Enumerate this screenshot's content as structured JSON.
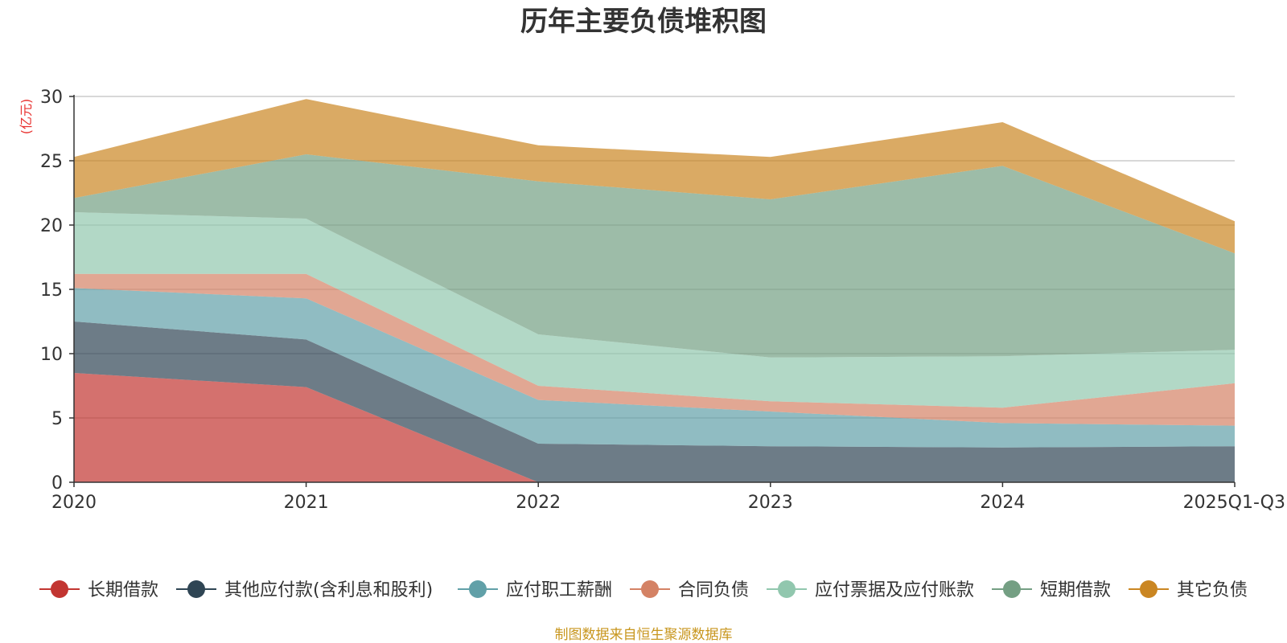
{
  "chart_data": {
    "type": "area",
    "stacked": true,
    "title": "历年主要负债堆积图",
    "unit_label": "(亿元)",
    "categories": [
      "2020",
      "2021",
      "2022",
      "2023",
      "2024",
      "2025Q1-Q3"
    ],
    "yticks": [
      "0",
      "5",
      "10",
      "15",
      "20",
      "25",
      "30"
    ],
    "ylim": [
      0,
      30
    ],
    "grid": true,
    "legend_position": "bottom",
    "series": [
      {
        "name": "长期借款",
        "color": "#c23531",
        "values": [
          8.5,
          7.4,
          0.0,
          0.0,
          0.0,
          0.0
        ]
      },
      {
        "name": "其他应付款(含利息和股利)",
        "color": "#2f4554",
        "values": [
          4.0,
          3.7,
          3.0,
          2.8,
          2.7,
          2.8
        ]
      },
      {
        "name": "应付职工薪酬",
        "color": "#61a0a8",
        "values": [
          2.6,
          3.2,
          3.4,
          2.7,
          1.9,
          1.6
        ]
      },
      {
        "name": "合同负债",
        "color": "#d48265",
        "values": [
          1.1,
          1.9,
          1.1,
          0.8,
          1.2,
          3.3
        ]
      },
      {
        "name": "应付票据及应付账款",
        "color": "#91c7ae",
        "values": [
          4.8,
          4.3,
          4.0,
          3.4,
          4.0,
          2.6
        ]
      },
      {
        "name": "短期借款",
        "color": "#749f83",
        "values": [
          1.1,
          5.0,
          11.9,
          12.3,
          14.8,
          7.5
        ]
      },
      {
        "name": "其它负债",
        "color": "#ca8622",
        "values": [
          3.2,
          4.3,
          2.8,
          3.3,
          3.4,
          2.5
        ]
      }
    ],
    "source_note": "制图数据来自恒生聚源数据库"
  }
}
